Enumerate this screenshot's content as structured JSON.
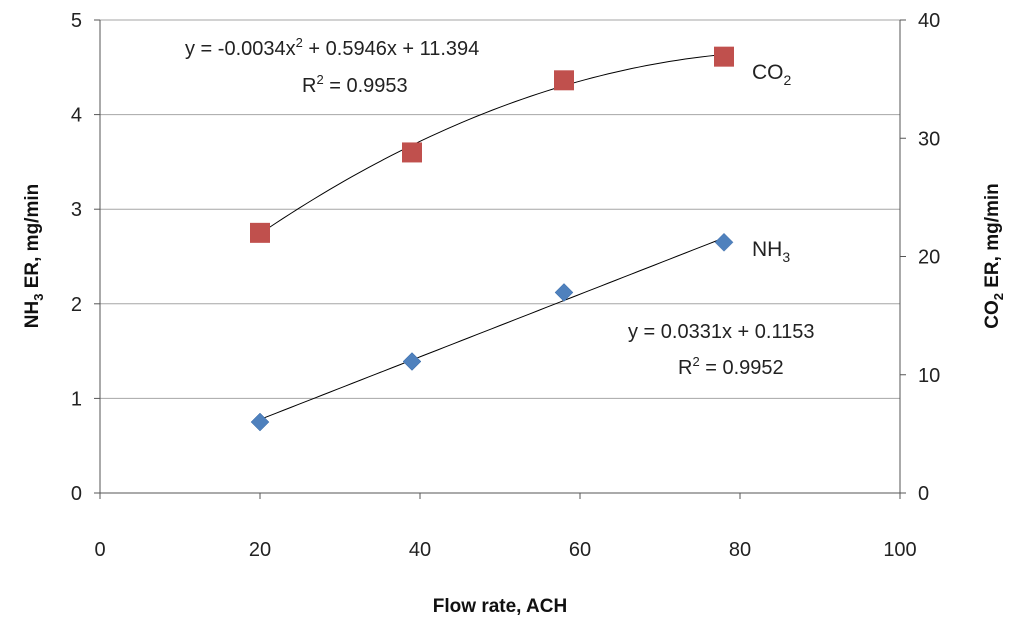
{
  "chart_data": {
    "type": "scatter",
    "xlabel": "Flow rate, ACH",
    "ylabel_left": {
      "main": "NH",
      "sub": "3",
      "rest": " ER, mg/min"
    },
    "ylabel_right": {
      "main": "CO",
      "sub": "2",
      "rest": " ER, mg/min"
    },
    "xlim": [
      0,
      100
    ],
    "ylim_left": [
      0,
      5
    ],
    "ylim_right": [
      0,
      40
    ],
    "x_ticks": [
      "0",
      "20",
      "40",
      "60",
      "80",
      "100"
    ],
    "y_left_ticks": [
      "0",
      "1",
      "2",
      "3",
      "4",
      "5"
    ],
    "y_right_ticks": [
      "0",
      "10",
      "20",
      "30",
      "40"
    ],
    "grid": "horizontal",
    "series": [
      {
        "name": "NH3",
        "label": {
          "main": "NH",
          "sub": "3"
        },
        "axis": "left",
        "marker": "diamond",
        "color": "#4f81bd",
        "x": [
          20,
          39,
          58,
          78
        ],
        "y": [
          0.75,
          1.39,
          2.12,
          2.65
        ],
        "trendline": {
          "type": "linear",
          "coef": [
            0.0331,
            0.1153
          ],
          "equation": "y = 0.0331x + 0.1153",
          "r2_value": " = 0.9952"
        }
      },
      {
        "name": "CO2",
        "label": {
          "main": "CO",
          "sub": "2"
        },
        "axis": "right",
        "marker": "square",
        "color": "#c0504d",
        "x": [
          20,
          39,
          58,
          78
        ],
        "y": [
          22.0,
          28.8,
          34.9,
          36.9
        ],
        "trendline": {
          "type": "poly2",
          "coef": [
            -0.0034,
            0.5946,
            11.394
          ],
          "equation_parts": [
            "y = -0.0034x",
            " + 0.5946x + 11.394"
          ],
          "r2_value": " = 0.9953"
        }
      }
    ]
  }
}
